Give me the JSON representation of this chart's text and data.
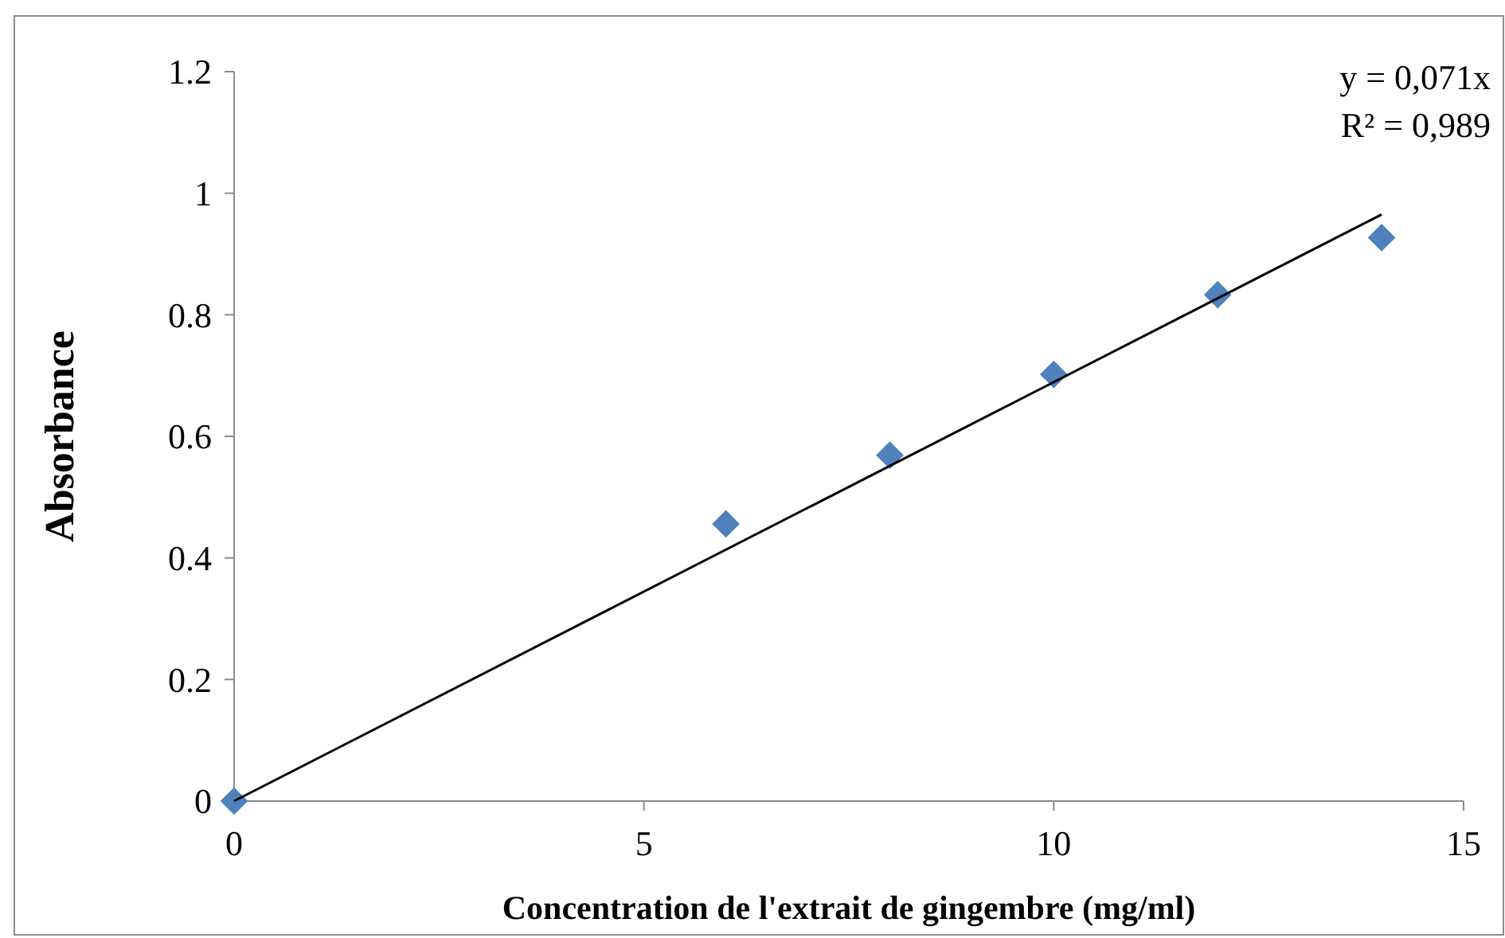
{
  "chart_data": {
    "type": "scatter",
    "xlabel": "Concentration de l'extrait de gingembre (mg/ml)",
    "ylabel": "Absorbance",
    "annotations": [
      "y = 0,071x",
      "R² = 0,989"
    ],
    "xlim": [
      0,
      15
    ],
    "xticks": [
      0,
      5,
      10,
      15
    ],
    "ylim": [
      0,
      1.2
    ],
    "yticks": [
      0,
      0.2,
      0.4,
      0.6,
      0.8,
      1,
      1.2
    ],
    "grid": false,
    "marker": "diamond",
    "series": [
      {
        "color": "#4f81bd",
        "x": [
          0,
          6,
          8,
          10,
          12,
          14
        ],
        "values": [
          0,
          0.456,
          0.569,
          0.702,
          0.833,
          0.927
        ]
      },
      {
        "type": "line",
        "color": "#000000",
        "marker": "none",
        "line_style": "solid",
        "x": [
          0,
          14
        ],
        "values": [
          0,
          0.965
        ]
      }
    ]
  }
}
